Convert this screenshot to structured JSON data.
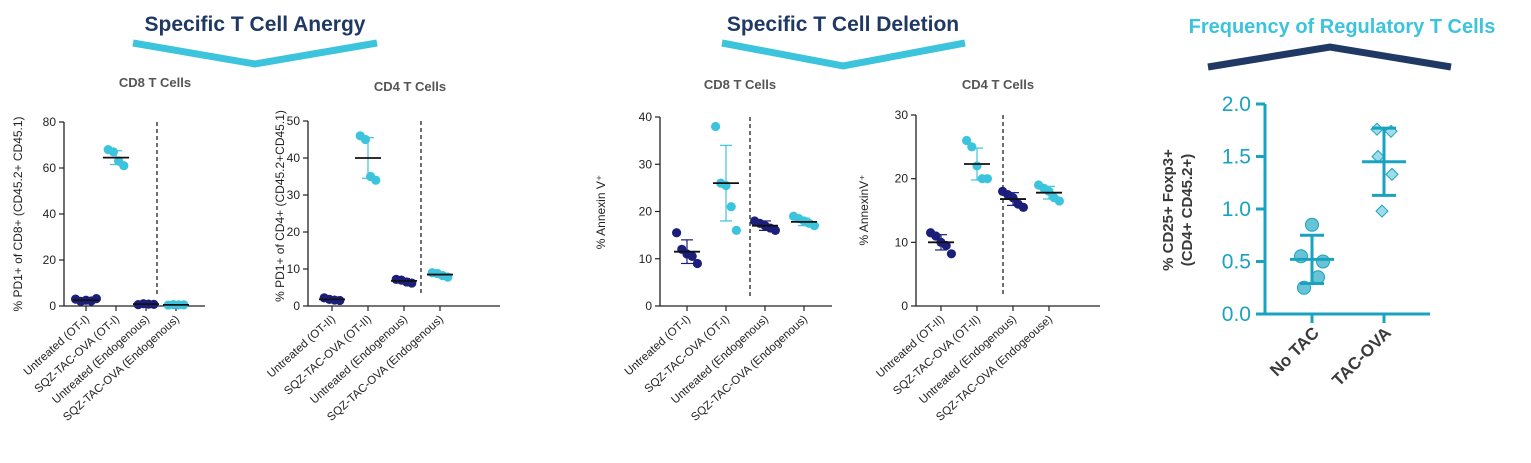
{
  "colors": {
    "navy": "#1b1f7a",
    "teal": "#3cc4dc",
    "title_navy": "#1f3864",
    "treg_teal": "#1aa3c0",
    "treg_fill": "#69c3d6",
    "treg_diamond": "#9fdbe8",
    "gray": "#555555"
  },
  "headings": {
    "anergy": "Specific T Cell Anergy",
    "deletion": "Specific T Cell Deletion",
    "treg": "Frequency of Regulatory T Cells"
  },
  "chart_data": [
    {
      "id": "anergy_cd8",
      "type": "scatter",
      "title": "CD8 T Cells",
      "ylabel": "% PD1+ of CD8+ (CD45.2+ CD45.1)",
      "ylim": [
        0,
        80
      ],
      "yticks": [
        0,
        20,
        40,
        60,
        80
      ],
      "categories": [
        "Untreated (OT-I)",
        "SQZ-TAC-OVA (OT-I)",
        "Untreated (Endogenous)",
        "SQZ-TAC-OVA (Endogenous)"
      ],
      "divider_after": 2,
      "groups": [
        {
          "color": "navy",
          "mean": 2.5,
          "sd": 0.8,
          "points": [
            3.0,
            2.0,
            2.5,
            2.2,
            3.2
          ]
        },
        {
          "color": "teal",
          "mean": 64.5,
          "sd": 3.0,
          "points": [
            68,
            67,
            63,
            61
          ]
        },
        {
          "color": "navy",
          "mean": 0.8,
          "sd": 0.3,
          "points": [
            0.6,
            1.0,
            0.8,
            0.7
          ]
        },
        {
          "color": "teal",
          "mean": 0.5,
          "sd": 0.2,
          "points": [
            0.4,
            0.6,
            0.5,
            0.5
          ]
        }
      ]
    },
    {
      "id": "anergy_cd4",
      "type": "scatter",
      "title": "CD4 T Cells",
      "ylabel": "% PD1+ of CD4+ (CD45.2+CD45.1)",
      "ylim": [
        0,
        50
      ],
      "yticks": [
        0,
        10,
        20,
        30,
        40,
        50
      ],
      "categories": [
        "Untreated (OT-II)",
        "SQZ-TAC-OVA (OT-II)",
        "Untreated (Endogenous)",
        "SQZ-TAC-OVA (Endogenous)"
      ],
      "divider_after": 2,
      "groups": [
        {
          "color": "navy",
          "mean": 1.8,
          "sd": 0.5,
          "points": [
            2.2,
            1.8,
            1.6,
            1.5
          ]
        },
        {
          "color": "teal",
          "mean": 40,
          "sd": 5.5,
          "points": [
            46,
            45,
            35,
            34
          ]
        },
        {
          "color": "navy",
          "mean": 6.8,
          "sd": 0.6,
          "points": [
            7.2,
            7.0,
            6.5,
            6.2
          ]
        },
        {
          "color": "teal",
          "mean": 8.5,
          "sd": 0.6,
          "points": [
            9.0,
            8.8,
            8.2,
            7.8
          ]
        }
      ]
    },
    {
      "id": "deletion_cd8",
      "type": "scatter",
      "title": "CD8 T Cells",
      "ylabel": "% Annexin V⁺",
      "ylim": [
        0,
        40
      ],
      "yticks": [
        0,
        10,
        20,
        30,
        40
      ],
      "categories": [
        "Untreated (OT-I)",
        "SQZ-TAC-OVA (OT-I)",
        "Untreated (Endogenous)",
        "SQZ-TAC-OVA (Endogenous)"
      ],
      "divider_after": 2,
      "groups": [
        {
          "color": "navy",
          "mean": 11.5,
          "sd": 2.5,
          "points": [
            15.5,
            12,
            11,
            10.5,
            9
          ]
        },
        {
          "color": "teal",
          "mean": 26,
          "sd": 8,
          "points": [
            38,
            26,
            25.5,
            21,
            16
          ]
        },
        {
          "color": "navy",
          "mean": 17,
          "sd": 1.0,
          "points": [
            18,
            17.5,
            17,
            16.5,
            16
          ]
        },
        {
          "color": "teal",
          "mean": 17.8,
          "sd": 0.8,
          "points": [
            19,
            18.5,
            18,
            17.5,
            17
          ]
        }
      ]
    },
    {
      "id": "deletion_cd4",
      "type": "scatter",
      "title": "CD4 T Cells",
      "ylabel": "% AnnexinV⁺",
      "ylim": [
        0,
        30
      ],
      "yticks": [
        0,
        10,
        20,
        30
      ],
      "categories": [
        "Untreated (OT-II)",
        "SQZ-TAC-OVA (OT-II)",
        "Untreated (Endogenous)",
        "SQZ-TAC-OVA (Endogeouse)"
      ],
      "divider_after": 2,
      "groups": [
        {
          "color": "navy",
          "mean": 10,
          "sd": 1.2,
          "points": [
            11.5,
            11,
            10,
            9.5,
            8.2
          ]
        },
        {
          "color": "teal",
          "mean": 22.3,
          "sd": 2.5,
          "points": [
            26,
            25,
            22,
            20,
            20
          ]
        },
        {
          "color": "navy",
          "mean": 16.8,
          "sd": 1.0,
          "points": [
            18,
            17.5,
            17,
            16,
            15.5
          ]
        },
        {
          "color": "teal",
          "mean": 17.8,
          "sd": 1.0,
          "points": [
            19,
            18.5,
            18,
            17,
            16.5
          ]
        }
      ]
    },
    {
      "id": "treg",
      "type": "scatter",
      "title": "",
      "ylabel": "% CD25+ Foxp3+",
      "ylabel2": "(CD4+ CD45.2+)",
      "ylim": [
        0,
        2
      ],
      "yticks": [
        "0.0",
        "0.5",
        "1.0",
        "1.5",
        "2.0"
      ],
      "categories": [
        "No TAC",
        "TAC-OVA"
      ],
      "groups": [
        {
          "marker": "circle",
          "mean": 0.52,
          "sd": 0.23,
          "points": [
            0.85,
            0.55,
            0.5,
            0.35,
            0.25
          ]
        },
        {
          "marker": "diamond",
          "mean": 1.45,
          "sd": 0.32,
          "points": [
            1.76,
            1.74,
            1.5,
            1.33,
            0.98
          ]
        }
      ]
    }
  ]
}
